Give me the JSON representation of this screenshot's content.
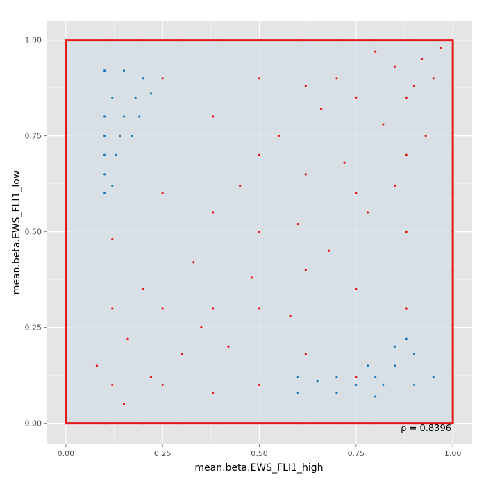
{
  "chart_data": {
    "type": "scatter",
    "title": "",
    "xlabel": "mean.beta.EWS_FLI1_high",
    "ylabel": "mean.beta.EWS_FLI1_low",
    "xlim": [
      -0.05,
      1.05
    ],
    "ylim": [
      -0.055,
      1.05
    ],
    "x_ticks": [
      0.0,
      0.25,
      0.5,
      0.75,
      1.0
    ],
    "y_ticks": [
      0.0,
      0.25,
      0.5,
      0.75,
      1.0
    ],
    "x_tick_labels": [
      "0.00",
      "0.25",
      "0.50",
      "0.75",
      "1.00"
    ],
    "y_tick_labels": [
      "0.00",
      "0.25",
      "0.50",
      "0.75",
      "1.00"
    ],
    "grid": true,
    "legend": "none",
    "annotation": "ρ = 0.8396",
    "colors": {
      "panel_background": "#e5e5e5",
      "grid": "#ffffff",
      "density_fill": "#d3dde5",
      "points_red": "#e31a1c",
      "points_blue": "#1f78b4"
    },
    "series": [
      {
        "color": "#e31a1c",
        "points": [
          [
            0.0,
            0.0
          ],
          [
            0.0,
            0.1
          ],
          [
            0.0,
            0.2
          ],
          [
            0.0,
            0.3
          ],
          [
            0.0,
            0.4
          ],
          [
            0.0,
            0.5
          ],
          [
            0.0,
            0.6
          ],
          [
            0.0,
            0.7
          ],
          [
            0.0,
            0.8
          ],
          [
            0.0,
            0.9
          ],
          [
            0.0,
            1.0
          ],
          [
            1.0,
            0.0
          ],
          [
            1.0,
            0.1
          ],
          [
            1.0,
            0.2
          ],
          [
            1.0,
            0.3
          ],
          [
            1.0,
            0.4
          ],
          [
            1.0,
            0.5
          ],
          [
            1.0,
            0.6
          ],
          [
            1.0,
            0.7
          ],
          [
            1.0,
            0.8
          ],
          [
            1.0,
            0.9
          ],
          [
            1.0,
            1.0
          ],
          [
            0.1,
            0.0
          ],
          [
            0.2,
            0.0
          ],
          [
            0.3,
            0.0
          ],
          [
            0.4,
            0.0
          ],
          [
            0.5,
            0.0
          ],
          [
            0.6,
            0.0
          ],
          [
            0.7,
            0.0
          ],
          [
            0.8,
            0.0
          ],
          [
            0.9,
            0.0
          ],
          [
            0.1,
            1.0
          ],
          [
            0.2,
            1.0
          ],
          [
            0.3,
            1.0
          ],
          [
            0.4,
            1.0
          ],
          [
            0.5,
            1.0
          ],
          [
            0.6,
            1.0
          ],
          [
            0.7,
            1.0
          ],
          [
            0.8,
            1.0
          ],
          [
            0.9,
            1.0
          ],
          [
            0.5,
            0.9
          ],
          [
            0.5,
            0.7
          ],
          [
            0.5,
            0.5
          ],
          [
            0.5,
            0.3
          ],
          [
            0.5,
            0.1
          ],
          [
            0.25,
            0.9
          ],
          [
            0.25,
            0.6
          ],
          [
            0.25,
            0.3
          ],
          [
            0.25,
            0.1
          ],
          [
            0.75,
            0.85
          ],
          [
            0.75,
            0.6
          ],
          [
            0.75,
            0.35
          ],
          [
            0.75,
            0.12
          ],
          [
            0.62,
            0.88
          ],
          [
            0.62,
            0.65
          ],
          [
            0.62,
            0.4
          ],
          [
            0.62,
            0.18
          ],
          [
            0.38,
            0.8
          ],
          [
            0.38,
            0.55
          ],
          [
            0.38,
            0.3
          ],
          [
            0.38,
            0.08
          ],
          [
            0.12,
            0.48
          ],
          [
            0.12,
            0.3
          ],
          [
            0.12,
            0.1
          ],
          [
            0.88,
            0.85
          ],
          [
            0.88,
            0.7
          ],
          [
            0.88,
            0.5
          ],
          [
            0.88,
            0.3
          ],
          [
            0.92,
            0.95
          ],
          [
            0.95,
            0.9
          ],
          [
            0.85,
            0.93
          ],
          [
            0.9,
            0.88
          ],
          [
            0.8,
            0.97
          ],
          [
            0.97,
            0.98
          ],
          [
            0.7,
            0.9
          ],
          [
            0.82,
            0.78
          ],
          [
            0.66,
            0.82
          ],
          [
            0.55,
            0.75
          ],
          [
            0.45,
            0.62
          ],
          [
            0.33,
            0.42
          ],
          [
            0.2,
            0.35
          ],
          [
            0.16,
            0.22
          ],
          [
            0.08,
            0.15
          ],
          [
            0.3,
            0.18
          ],
          [
            0.42,
            0.2
          ],
          [
            0.58,
            0.28
          ],
          [
            0.68,
            0.45
          ],
          [
            0.78,
            0.55
          ],
          [
            0.85,
            0.62
          ],
          [
            0.93,
            0.75
          ],
          [
            0.15,
            0.05
          ],
          [
            0.22,
            0.12
          ],
          [
            0.35,
            0.25
          ],
          [
            0.48,
            0.38
          ],
          [
            0.6,
            0.52
          ],
          [
            0.72,
            0.68
          ]
        ]
      },
      {
        "color": "#1f78b4",
        "points": [
          [
            0.1,
            0.92
          ],
          [
            0.15,
            0.92
          ],
          [
            0.2,
            0.9
          ],
          [
            0.12,
            0.85
          ],
          [
            0.18,
            0.85
          ],
          [
            0.22,
            0.86
          ],
          [
            0.1,
            0.8
          ],
          [
            0.15,
            0.8
          ],
          [
            0.19,
            0.8
          ],
          [
            0.1,
            0.75
          ],
          [
            0.14,
            0.75
          ],
          [
            0.17,
            0.75
          ],
          [
            0.1,
            0.7
          ],
          [
            0.13,
            0.7
          ],
          [
            0.1,
            0.65
          ],
          [
            0.12,
            0.62
          ],
          [
            0.1,
            0.6
          ],
          [
            0.6,
            0.12
          ],
          [
            0.65,
            0.11
          ],
          [
            0.7,
            0.12
          ],
          [
            0.75,
            0.1
          ],
          [
            0.8,
            0.12
          ],
          [
            0.85,
            0.15
          ],
          [
            0.9,
            0.18
          ],
          [
            0.88,
            0.22
          ],
          [
            0.6,
            0.08
          ],
          [
            0.7,
            0.08
          ],
          [
            0.8,
            0.07
          ],
          [
            0.9,
            0.1
          ],
          [
            0.95,
            0.12
          ],
          [
            0.85,
            0.2
          ],
          [
            0.82,
            0.1
          ],
          [
            0.78,
            0.15
          ]
        ]
      }
    ]
  }
}
